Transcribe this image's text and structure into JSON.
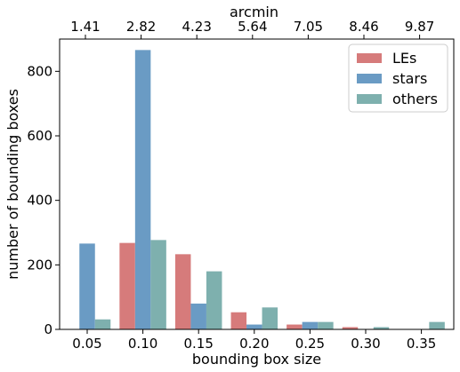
{
  "chart_data": {
    "type": "bar",
    "categories": [
      "0.05",
      "0.10",
      "0.15",
      "0.20",
      "0.25",
      "0.30",
      "0.35"
    ],
    "series": [
      {
        "name": "LEs",
        "color": "#d67b7b",
        "values": [
          0,
          268,
          233,
          53,
          15,
          7,
          0
        ]
      },
      {
        "name": "stars",
        "color": "#6a9bc4",
        "values": [
          266,
          866,
          80,
          15,
          23,
          0,
          0
        ]
      },
      {
        "name": "others",
        "color": "#7eb0ae",
        "values": [
          31,
          277,
          180,
          68,
          23,
          7,
          23
        ]
      }
    ],
    "xlabel": "bounding box size",
    "ylabel": "number of bounding boxes",
    "ylim": [
      0,
      900
    ],
    "yticks": [
      0,
      200,
      400,
      600,
      800
    ],
    "top_axis": {
      "label": "arcmin",
      "tick_labels": [
        "1.41",
        "2.82",
        "4.23",
        "5.64",
        "7.05",
        "8.46",
        "9.87"
      ]
    },
    "legend": "top-right",
    "grid": false
  }
}
